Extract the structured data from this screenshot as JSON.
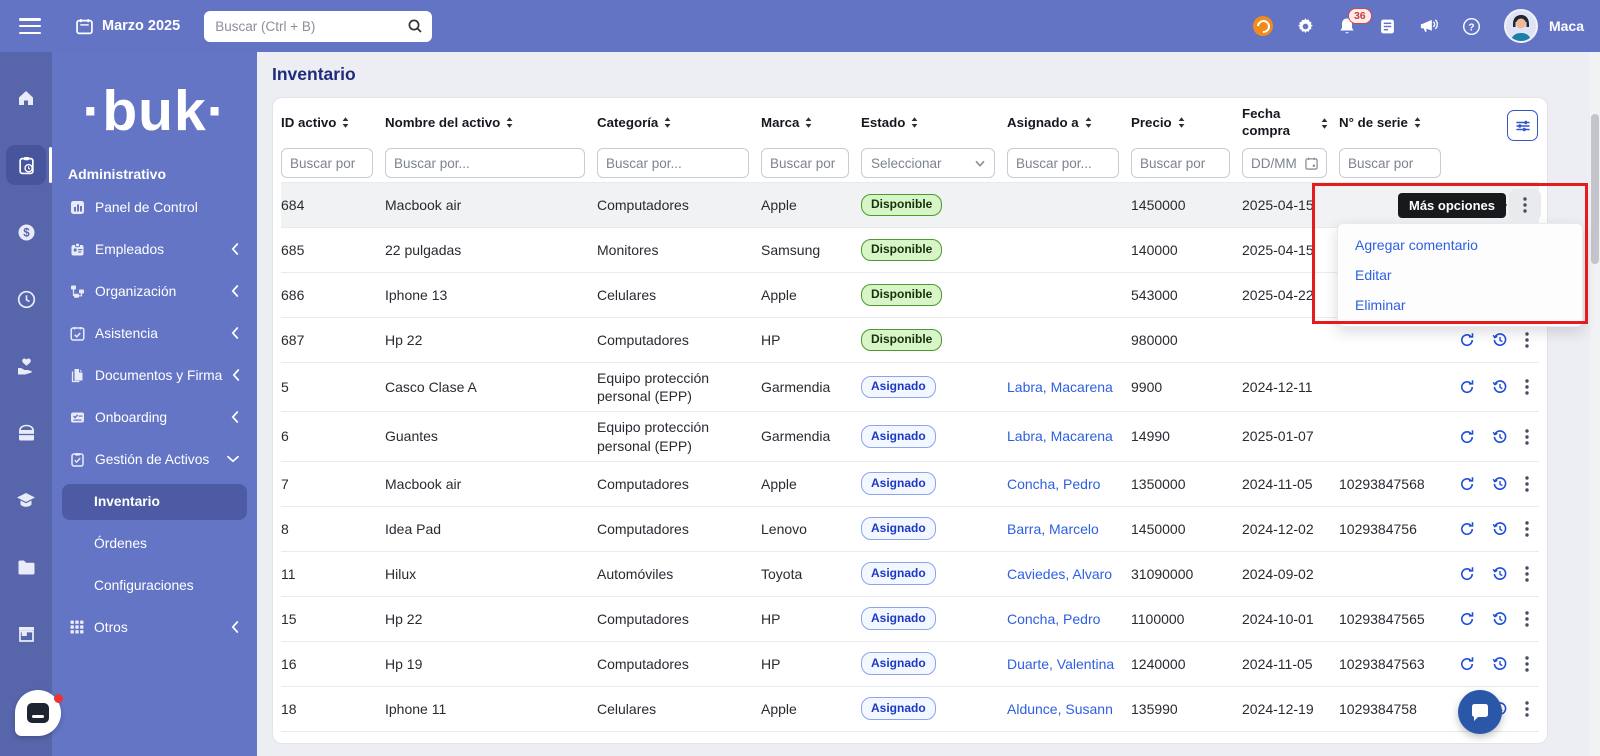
{
  "colors": {
    "topbar": "#6374c5",
    "rail": "#5765ab",
    "panel": "#6475c6",
    "accent_link": "#2d5fe0",
    "action_icon": "#1d4ed8",
    "badge_green_bg": "#d7f5c6",
    "badge_green_border": "#4a9a2e",
    "badge_blue_bg": "#f3f7ff",
    "badge_blue_text": "#1d39c4",
    "annotation_red": "#e61b1b",
    "fab_blue": "#2a57a7",
    "title_navy": "#1f2b7b"
  },
  "topbar": {
    "date": "Marzo 2025",
    "search_placeholder": "Buscar (Ctrl + B)",
    "notification_count": "36",
    "user_name": "Maca",
    "icons": [
      "hamburger-icon",
      "calendar-icon",
      "search-icon",
      "recording-icon",
      "gear-icon",
      "bell-icon",
      "document-icon",
      "megaphone-icon",
      "help-icon",
      "avatar"
    ]
  },
  "sidebar": {
    "logo": "·buk·",
    "section_label": "Administrativo",
    "items": [
      {
        "label": "Panel de Control",
        "icon": "dashboard-icon",
        "chevron": "none"
      },
      {
        "label": "Empleados",
        "icon": "badge-icon",
        "chevron": "collapsed"
      },
      {
        "label": "Organización",
        "icon": "org-chart-icon",
        "chevron": "collapsed"
      },
      {
        "label": "Asistencia",
        "icon": "calendar-check-icon",
        "chevron": "collapsed"
      },
      {
        "label": "Documentos y Firma",
        "icon": "documents-icon",
        "chevron": "collapsed"
      },
      {
        "label": "Onboarding",
        "icon": "card-check-icon",
        "chevron": "collapsed"
      },
      {
        "label": "Gestión de Activos",
        "icon": "clipboard-icon",
        "chevron": "expanded"
      }
    ],
    "subitems": [
      {
        "label": "Inventario",
        "active": true
      },
      {
        "label": "Órdenes",
        "active": false
      },
      {
        "label": "Configuraciones",
        "active": false
      }
    ],
    "last_item": {
      "label": "Otros",
      "icon": "grid-icon",
      "chevron": "collapsed"
    },
    "rail_icons": [
      "home-icon",
      "clipboard-clock-icon",
      "dollar-icon",
      "clock-icon",
      "hand-heart-icon",
      "kit-icon",
      "graduation-icon",
      "folder-icon",
      "store-icon"
    ]
  },
  "page": {
    "title": "Inventario"
  },
  "table": {
    "columns": [
      {
        "label": "ID activo",
        "filter": "Buscar por",
        "type": "input"
      },
      {
        "label": "Nombre del activo",
        "filter": "Buscar por...",
        "type": "input"
      },
      {
        "label": "Categoría",
        "filter": "Buscar por...",
        "type": "input"
      },
      {
        "label": "Marca",
        "filter": "Buscar por",
        "type": "input"
      },
      {
        "label": "Estado",
        "filter": "Seleccionar",
        "type": "select"
      },
      {
        "label": "Asignado a",
        "filter": "Buscar por...",
        "type": "input"
      },
      {
        "label": "Precio",
        "filter": "Buscar por",
        "type": "input"
      },
      {
        "label": "Fecha compra",
        "filter": "DD/MM",
        "type": "date"
      },
      {
        "label": "N° de serie",
        "filter": "Buscar por",
        "type": "input"
      }
    ],
    "rows": [
      {
        "id": "684",
        "nombre": "Macbook air",
        "categoria": "Computadores",
        "marca": "Apple",
        "estado": "Disponible",
        "asignado": "",
        "precio": "1450000",
        "fecha": "2025-04-15",
        "serie": "",
        "hovered": true
      },
      {
        "id": "685",
        "nombre": "22 pulgadas",
        "categoria": "Monitores",
        "marca": "Samsung",
        "estado": "Disponible",
        "asignado": "",
        "precio": "140000",
        "fecha": "2025-04-15",
        "serie": ""
      },
      {
        "id": "686",
        "nombre": "Iphone 13",
        "categoria": "Celulares",
        "marca": "Apple",
        "estado": "Disponible",
        "asignado": "",
        "precio": "543000",
        "fecha": "2025-04-22",
        "serie": ""
      },
      {
        "id": "687",
        "nombre": "Hp 22",
        "categoria": "Computadores",
        "marca": "HP",
        "estado": "Disponible",
        "asignado": "",
        "precio": "980000",
        "fecha": "",
        "serie": ""
      },
      {
        "id": "5",
        "nombre": "Casco Clase A",
        "categoria": "Equipo protección personal (EPP)",
        "marca": "Garmendia",
        "estado": "Asignado",
        "asignado": "Labra, Macarena",
        "precio": "9900",
        "fecha": "2024-12-11",
        "serie": ""
      },
      {
        "id": "6",
        "nombre": "Guantes",
        "categoria": "Equipo protección personal (EPP)",
        "marca": "Garmendia",
        "estado": "Asignado",
        "asignado": "Labra, Macarena",
        "precio": "14990",
        "fecha": "2025-01-07",
        "serie": ""
      },
      {
        "id": "7",
        "nombre": "Macbook air",
        "categoria": "Computadores",
        "marca": "Apple",
        "estado": "Asignado",
        "asignado": "Concha, Pedro",
        "precio": "1350000",
        "fecha": "2024-11-05",
        "serie": "10293847568"
      },
      {
        "id": "8",
        "nombre": "Idea Pad",
        "categoria": "Computadores",
        "marca": "Lenovo",
        "estado": "Asignado",
        "asignado": "Barra, Marcelo",
        "precio": "1450000",
        "fecha": "2024-12-02",
        "serie": "1029384756"
      },
      {
        "id": "11",
        "nombre": "Hilux",
        "categoria": "Automóviles",
        "marca": "Toyota",
        "estado": "Asignado",
        "asignado": "Caviedes, Alvaro",
        "precio": "31090000",
        "fecha": "2024-09-02",
        "serie": ""
      },
      {
        "id": "15",
        "nombre": "Hp 22",
        "categoria": "Computadores",
        "marca": "HP",
        "estado": "Asignado",
        "asignado": "Concha, Pedro",
        "precio": "1100000",
        "fecha": "2024-10-01",
        "serie": "10293847565"
      },
      {
        "id": "16",
        "nombre": "Hp 19",
        "categoria": "Computadores",
        "marca": "HP",
        "estado": "Asignado",
        "asignado": "Duarte, Valentina",
        "precio": "1240000",
        "fecha": "2024-11-05",
        "serie": "10293847563"
      },
      {
        "id": "18",
        "nombre": "Iphone 11",
        "categoria": "Celulares",
        "marca": "Apple",
        "estado": "Asignado",
        "asignado": "Aldunce, Susann",
        "precio": "135990",
        "fecha": "2024-12-19",
        "serie": "1029384758"
      }
    ]
  },
  "context_menu": {
    "tooltip": "Más opciones",
    "items": [
      "Agregar comentario",
      "Editar",
      "Eliminar"
    ]
  }
}
